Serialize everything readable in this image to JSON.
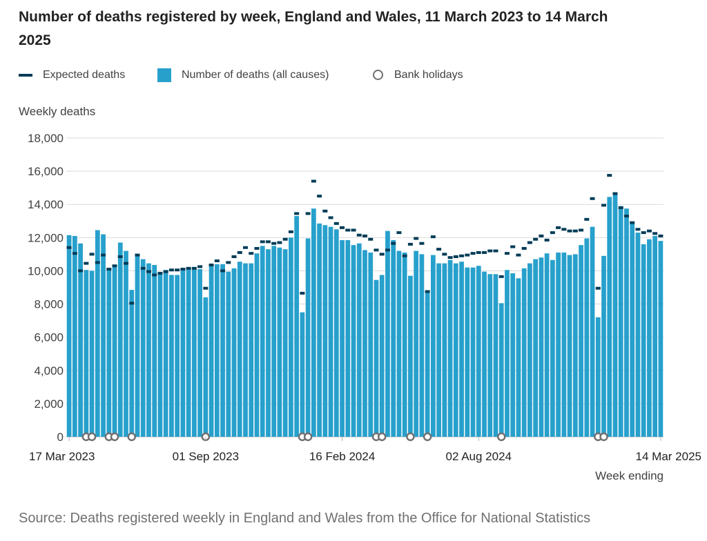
{
  "title": "Number of deaths registered by week, England and Wales, 11 March 2023 to 14 March 2025",
  "legend": {
    "expected": "Expected deaths",
    "actual": "Number of deaths (all causes)",
    "holidays": "Bank holidays"
  },
  "source": "Source: Deaths registered weekly in England and Wales from the Office for National Statistics",
  "colors": {
    "bar": "#27a0cc",
    "expected": "#003c57",
    "holiday": "#707071",
    "grid": "#d9d9d9"
  },
  "chart_data": {
    "type": "bar",
    "ylabel": "Weekly deaths",
    "xlabel": "Week ending",
    "ylim": [
      0,
      18000
    ],
    "yticks": [
      0,
      2000,
      4000,
      6000,
      8000,
      10000,
      12000,
      14000,
      16000,
      18000
    ],
    "ytick_labels": [
      "0",
      "2,000",
      "4,000",
      "6,000",
      "8,000",
      "10,000",
      "12,000",
      "14,000",
      "16,000",
      "18,000"
    ],
    "xtick_labels": [
      {
        "index": 0,
        "label": "17 Mar 2023"
      },
      {
        "index": 24,
        "label": "01 Sep 2023"
      },
      {
        "index": 48,
        "label": "16 Feb 2024"
      },
      {
        "index": 72,
        "label": "02 Aug 2024"
      },
      {
        "index": 104,
        "label": "14 Mar 2025"
      }
    ],
    "grid": true,
    "legend_position": "top",
    "series": [
      {
        "name": "Number of deaths (all causes)",
        "values": [
          12150,
          12100,
          11650,
          10050,
          10000,
          12450,
          12200,
          10100,
          10300,
          11700,
          11200,
          8850,
          10950,
          10700,
          10450,
          10350,
          9900,
          10050,
          9750,
          9750,
          10050,
          10100,
          10100,
          10100,
          8400,
          10300,
          10400,
          10400,
          9950,
          10150,
          10550,
          10450,
          10450,
          11050,
          11500,
          11300,
          11500,
          11400,
          11300,
          12000,
          13300,
          7500,
          11950,
          13750,
          12850,
          12750,
          12650,
          12500,
          11850,
          11850,
          11550,
          11650,
          11250,
          11100,
          9450,
          9750,
          12400,
          11850,
          11200,
          11100,
          9700,
          11200,
          11000,
          8700,
          10950,
          10450,
          10450,
          10650,
          10450,
          10550,
          10200,
          10200,
          10300,
          9950,
          9800,
          9800,
          8050,
          10050,
          9850,
          9550,
          10150,
          10450,
          10700,
          10800,
          11050,
          10650,
          11100,
          11100,
          10950,
          11000,
          11550,
          11950,
          12650,
          7200,
          10900,
          14450,
          14600,
          13900,
          13750,
          12850,
          12300,
          11600,
          11900,
          12100,
          11800
        ]
      },
      {
        "name": "Expected deaths",
        "values": [
          11400,
          11050,
          10000,
          10450,
          11000,
          10500,
          10950,
          10100,
          10300,
          10850,
          10450,
          8050,
          10950,
          10150,
          9950,
          9750,
          9850,
          9950,
          10050,
          10050,
          10100,
          10150,
          10150,
          10250,
          8950,
          10350,
          10600,
          10000,
          10500,
          10850,
          11100,
          11400,
          11050,
          11350,
          11750,
          11750,
          11650,
          11700,
          11900,
          12350,
          13450,
          8650,
          13450,
          15400,
          14500,
          13600,
          13200,
          12850,
          12600,
          12450,
          12450,
          12150,
          12100,
          11900,
          11250,
          11000,
          11250,
          11650,
          12300,
          10900,
          11600,
          11950,
          11650,
          8750,
          12050,
          11300,
          11000,
          10800,
          10850,
          10900,
          10950,
          11050,
          11100,
          11100,
          11200,
          11200,
          9650,
          11050,
          11450,
          10950,
          11350,
          11700,
          11900,
          12100,
          11850,
          12300,
          12600,
          12500,
          12400,
          12400,
          12450,
          13100,
          14350,
          8950,
          13950,
          15750,
          14650,
          13800,
          13300,
          12900,
          12500,
          12300,
          12400,
          12250,
          12100
        ]
      }
    ],
    "bank_holiday_indices": [
      3,
      4,
      7,
      8,
      11,
      24,
      41,
      42,
      54,
      55,
      60,
      63,
      76,
      93,
      94
    ]
  }
}
